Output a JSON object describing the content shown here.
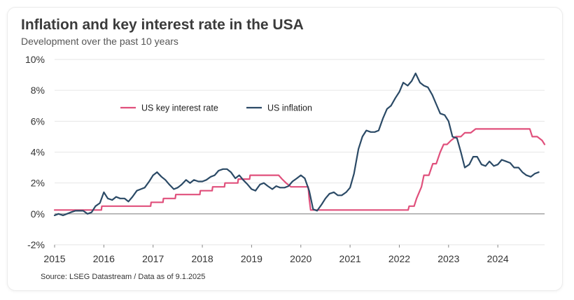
{
  "header": {
    "title": "Inflation and key interest rate in the USA",
    "subtitle": "Development over the past 10 years"
  },
  "footer": {
    "source": "Source: LSEG Datastream / Data as of 9.1.2025"
  },
  "colors": {
    "interest": "#e0507c",
    "inflation": "#2b4a66",
    "grid": "#e6e6e6",
    "zero": "#888888"
  },
  "chart_data": {
    "type": "line",
    "title": "Inflation and key interest rate in the USA",
    "subtitle": "Development over the past 10 years",
    "xlabel": "",
    "ylabel": "",
    "xlim": [
      2015.0,
      2024.95
    ],
    "ylim": [
      -2,
      10
    ],
    "x_ticks": [
      "2015",
      "2016",
      "2017",
      "2018",
      "2019",
      "2020",
      "2021",
      "2022",
      "2023",
      "2024"
    ],
    "y_ticks": [
      {
        "value": -2,
        "label": "-2%"
      },
      {
        "value": 0,
        "label": "0%"
      },
      {
        "value": 2,
        "label": "2%"
      },
      {
        "value": 4,
        "label": "4%"
      },
      {
        "value": 6,
        "label": "6%"
      },
      {
        "value": 8,
        "label": "8%"
      },
      {
        "value": 10,
        "label": "10%"
      }
    ],
    "grid": "horizontal",
    "legend": "inside-top-left",
    "series": [
      {
        "name": "US key interest rate",
        "color": "#e0507c",
        "points": [
          [
            2015.0,
            0.25
          ],
          [
            2015.95,
            0.25
          ],
          [
            2015.96,
            0.5
          ],
          [
            2016.95,
            0.5
          ],
          [
            2016.96,
            0.75
          ],
          [
            2017.2,
            0.75
          ],
          [
            2017.21,
            1.0
          ],
          [
            2017.45,
            1.0
          ],
          [
            2017.46,
            1.25
          ],
          [
            2017.95,
            1.25
          ],
          [
            2017.96,
            1.5
          ],
          [
            2018.2,
            1.5
          ],
          [
            2018.21,
            1.75
          ],
          [
            2018.45,
            1.75
          ],
          [
            2018.46,
            2.0
          ],
          [
            2018.72,
            2.0
          ],
          [
            2018.73,
            2.25
          ],
          [
            2018.96,
            2.25
          ],
          [
            2018.97,
            2.5
          ],
          [
            2019.55,
            2.5
          ],
          [
            2019.62,
            2.25
          ],
          [
            2019.7,
            2.0
          ],
          [
            2019.8,
            1.75
          ],
          [
            2020.15,
            1.75
          ],
          [
            2020.17,
            1.0
          ],
          [
            2020.2,
            0.25
          ],
          [
            2022.18,
            0.25
          ],
          [
            2022.2,
            0.5
          ],
          [
            2022.3,
            0.5
          ],
          [
            2022.35,
            1.0
          ],
          [
            2022.45,
            1.75
          ],
          [
            2022.5,
            2.5
          ],
          [
            2022.6,
            2.5
          ],
          [
            2022.68,
            3.25
          ],
          [
            2022.75,
            3.25
          ],
          [
            2022.83,
            4.0
          ],
          [
            2022.9,
            4.5
          ],
          [
            2022.97,
            4.5
          ],
          [
            2023.05,
            4.75
          ],
          [
            2023.15,
            5.0
          ],
          [
            2023.25,
            5.0
          ],
          [
            2023.33,
            5.25
          ],
          [
            2023.45,
            5.25
          ],
          [
            2023.55,
            5.5
          ],
          [
            2024.65,
            5.5
          ],
          [
            2024.7,
            5.0
          ],
          [
            2024.8,
            5.0
          ],
          [
            2024.9,
            4.75
          ],
          [
            2024.95,
            4.5
          ]
        ]
      },
      {
        "name": "US inflation",
        "color": "#2b4a66",
        "points": [
          [
            2015.0,
            -0.1
          ],
          [
            2015.08,
            0.0
          ],
          [
            2015.17,
            -0.1
          ],
          [
            2015.25,
            0.0
          ],
          [
            2015.33,
            0.1
          ],
          [
            2015.42,
            0.2
          ],
          [
            2015.5,
            0.2
          ],
          [
            2015.58,
            0.2
          ],
          [
            2015.67,
            0.0
          ],
          [
            2015.75,
            0.1
          ],
          [
            2015.83,
            0.5
          ],
          [
            2015.92,
            0.7
          ],
          [
            2016.0,
            1.4
          ],
          [
            2016.08,
            1.0
          ],
          [
            2016.17,
            0.9
          ],
          [
            2016.25,
            1.1
          ],
          [
            2016.33,
            1.0
          ],
          [
            2016.42,
            1.0
          ],
          [
            2016.5,
            0.8
          ],
          [
            2016.58,
            1.1
          ],
          [
            2016.67,
            1.5
          ],
          [
            2016.75,
            1.6
          ],
          [
            2016.83,
            1.7
          ],
          [
            2016.92,
            2.1
          ],
          [
            2017.0,
            2.5
          ],
          [
            2017.08,
            2.7
          ],
          [
            2017.17,
            2.4
          ],
          [
            2017.25,
            2.2
          ],
          [
            2017.33,
            1.9
          ],
          [
            2017.42,
            1.6
          ],
          [
            2017.5,
            1.7
          ],
          [
            2017.58,
            1.9
          ],
          [
            2017.67,
            2.2
          ],
          [
            2017.75,
            2.0
          ],
          [
            2017.83,
            2.2
          ],
          [
            2017.92,
            2.1
          ],
          [
            2018.0,
            2.1
          ],
          [
            2018.08,
            2.2
          ],
          [
            2018.17,
            2.4
          ],
          [
            2018.25,
            2.5
          ],
          [
            2018.33,
            2.8
          ],
          [
            2018.42,
            2.9
          ],
          [
            2018.5,
            2.9
          ],
          [
            2018.58,
            2.7
          ],
          [
            2018.67,
            2.3
          ],
          [
            2018.75,
            2.5
          ],
          [
            2018.83,
            2.2
          ],
          [
            2018.92,
            1.9
          ],
          [
            2019.0,
            1.6
          ],
          [
            2019.08,
            1.5
          ],
          [
            2019.17,
            1.9
          ],
          [
            2019.25,
            2.0
          ],
          [
            2019.33,
            1.8
          ],
          [
            2019.42,
            1.6
          ],
          [
            2019.5,
            1.8
          ],
          [
            2019.58,
            1.7
          ],
          [
            2019.67,
            1.7
          ],
          [
            2019.75,
            1.8
          ],
          [
            2019.83,
            2.1
          ],
          [
            2019.92,
            2.3
          ],
          [
            2020.0,
            2.5
          ],
          [
            2020.08,
            2.3
          ],
          [
            2020.17,
            1.5
          ],
          [
            2020.25,
            0.3
          ],
          [
            2020.33,
            0.2
          ],
          [
            2020.42,
            0.6
          ],
          [
            2020.5,
            1.0
          ],
          [
            2020.58,
            1.3
          ],
          [
            2020.67,
            1.4
          ],
          [
            2020.75,
            1.2
          ],
          [
            2020.83,
            1.2
          ],
          [
            2020.92,
            1.4
          ],
          [
            2021.0,
            1.7
          ],
          [
            2021.08,
            2.6
          ],
          [
            2021.17,
            4.2
          ],
          [
            2021.25,
            5.0
          ],
          [
            2021.33,
            5.4
          ],
          [
            2021.42,
            5.3
          ],
          [
            2021.5,
            5.3
          ],
          [
            2021.58,
            5.4
          ],
          [
            2021.67,
            6.2
          ],
          [
            2021.75,
            6.8
          ],
          [
            2021.83,
            7.0
          ],
          [
            2021.92,
            7.5
          ],
          [
            2022.0,
            7.9
          ],
          [
            2022.08,
            8.5
          ],
          [
            2022.17,
            8.3
          ],
          [
            2022.25,
            8.6
          ],
          [
            2022.33,
            9.1
          ],
          [
            2022.42,
            8.5
          ],
          [
            2022.5,
            8.3
          ],
          [
            2022.58,
            8.2
          ],
          [
            2022.67,
            7.7
          ],
          [
            2022.75,
            7.1
          ],
          [
            2022.83,
            6.5
          ],
          [
            2022.92,
            6.4
          ],
          [
            2023.0,
            6.0
          ],
          [
            2023.08,
            5.0
          ],
          [
            2023.17,
            4.9
          ],
          [
            2023.25,
            4.0
          ],
          [
            2023.33,
            3.0
          ],
          [
            2023.42,
            3.2
          ],
          [
            2023.5,
            3.7
          ],
          [
            2023.58,
            3.7
          ],
          [
            2023.67,
            3.2
          ],
          [
            2023.75,
            3.1
          ],
          [
            2023.83,
            3.4
          ],
          [
            2023.92,
            3.1
          ],
          [
            2024.0,
            3.2
          ],
          [
            2024.08,
            3.5
          ],
          [
            2024.17,
            3.4
          ],
          [
            2024.25,
            3.3
          ],
          [
            2024.33,
            3.0
          ],
          [
            2024.42,
            3.0
          ],
          [
            2024.5,
            2.7
          ],
          [
            2024.58,
            2.5
          ],
          [
            2024.67,
            2.4
          ],
          [
            2024.75,
            2.6
          ],
          [
            2024.83,
            2.7
          ]
        ]
      }
    ]
  }
}
